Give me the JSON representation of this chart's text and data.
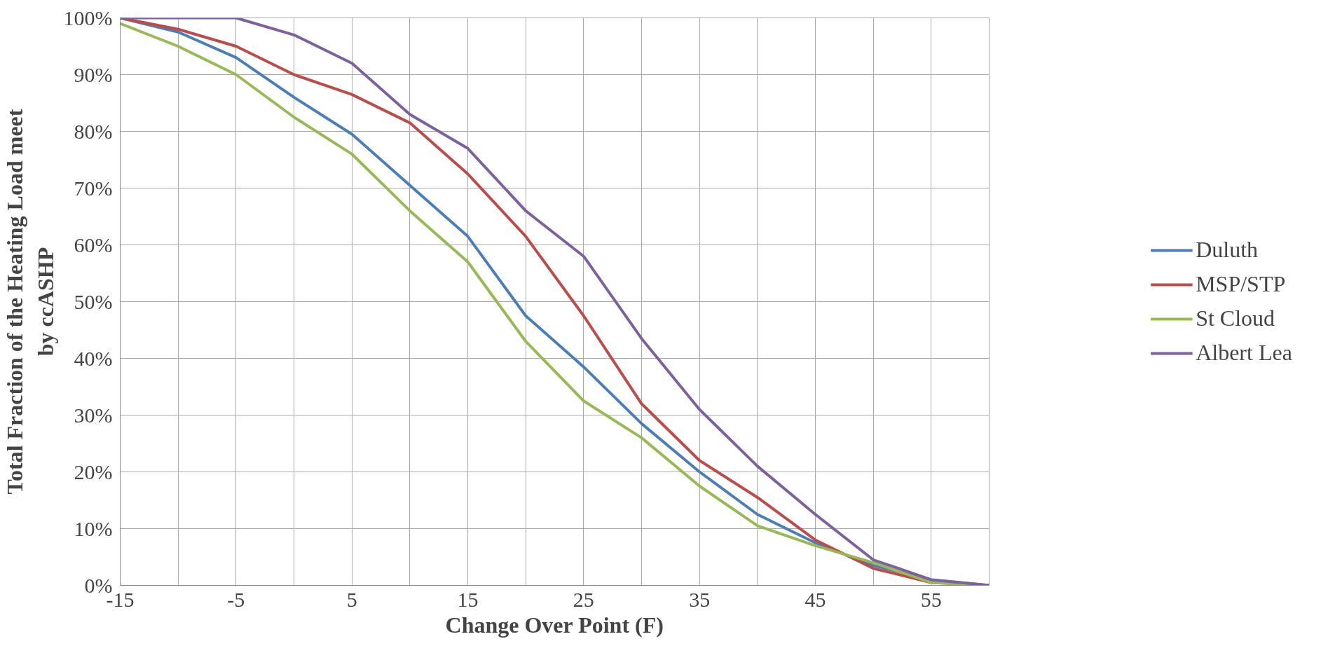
{
  "chart_data": {
    "type": "line",
    "xlabel": "Change Over Point (F)",
    "ylabel": "Total Fraction of the Heating Load meet\nby ccASHP",
    "x": [
      -15,
      -10,
      -5,
      0,
      5,
      10,
      15,
      20,
      25,
      30,
      35,
      40,
      45,
      50,
      55,
      60
    ],
    "series": [
      {
        "name": "Duluth",
        "color": "#4a7ebb",
        "values": [
          100,
          97.5,
          93,
          86,
          79.5,
          70.5,
          61.5,
          47.5,
          38.5,
          28.5,
          20,
          12.5,
          7.5,
          3.5,
          1,
          0
        ]
      },
      {
        "name": "MSP/STP",
        "color": "#be4b48",
        "values": [
          100,
          98,
          95,
          90,
          86.5,
          81.5,
          72.5,
          61.5,
          47.5,
          32,
          22,
          15.5,
          8,
          3,
          0.5,
          0
        ]
      },
      {
        "name": "St Cloud",
        "color": "#98b954",
        "values": [
          99,
          95,
          90,
          82.5,
          76,
          66,
          57,
          43,
          32.5,
          26,
          17.5,
          10.5,
          7,
          4,
          0.5,
          0
        ]
      },
      {
        "name": "Albert Lea",
        "color": "#7d60a0",
        "values": [
          100,
          100,
          100,
          97,
          92,
          83,
          77,
          66,
          58,
          43.5,
          31,
          21,
          12.5,
          4.5,
          1,
          0
        ]
      }
    ],
    "xlim": [
      -15,
      60
    ],
    "xticks": [
      -15,
      {
        "value": -10,
        "label": null
      },
      -5,
      {
        "value": 0,
        "label": null
      },
      5,
      {
        "value": 10,
        "label": null
      },
      15,
      {
        "value": 20,
        "label": null
      },
      25,
      {
        "value": 30,
        "label": null
      },
      35,
      {
        "value": 40,
        "label": null
      },
      45,
      {
        "value": 50,
        "label": null
      },
      55,
      {
        "value": 60,
        "label": null
      }
    ],
    "ylim": [
      0,
      100
    ],
    "yticks": [
      {
        "value": 0,
        "label": "0%"
      },
      {
        "value": 10,
        "label": "10%"
      },
      {
        "value": 20,
        "label": "20%"
      },
      {
        "value": 30,
        "label": "30%"
      },
      {
        "value": 40,
        "label": "40%"
      },
      {
        "value": 50,
        "label": "50%"
      },
      {
        "value": 60,
        "label": "60%"
      },
      {
        "value": 70,
        "label": "70%"
      },
      {
        "value": 80,
        "label": "80%"
      },
      {
        "value": 90,
        "label": "90%"
      },
      {
        "value": 100,
        "label": "100%"
      }
    ],
    "grid": true,
    "legend": "right",
    "marker": "none",
    "line_style": "solid"
  }
}
